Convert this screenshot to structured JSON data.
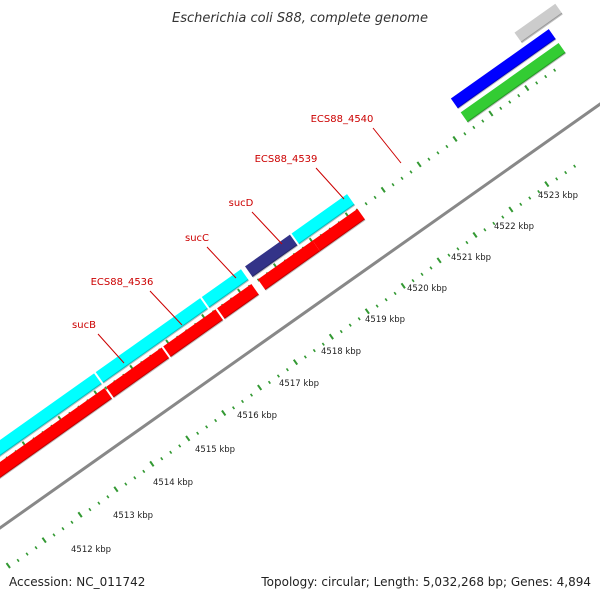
{
  "title": "Escherichia coli S88, complete genome",
  "footer": {
    "accession": "Accession: NC_011742",
    "topology": "Topology: circular; Length: 5,032,268 bp; Genes: 4,894"
  },
  "gene_labels": [
    "sucB",
    "ECS88_4536",
    "sucC",
    "sucD",
    "ECS88_4539",
    "ECS88_4540"
  ],
  "kbp_labels": [
    "4512 kbp",
    "4513 kbp",
    "4514 kbp",
    "4515 kbp",
    "4516 kbp",
    "4517 kbp",
    "4518 kbp",
    "4519 kbp",
    "4520 kbp",
    "4521 kbp",
    "4522 kbp",
    "4523 kbp"
  ],
  "colors": {
    "cyan_track": "#00ffff",
    "red_track": "#ff0000",
    "navy_feature": "#333388",
    "blue_feature": "#0000ff",
    "green_feature": "#33cc33",
    "gray_feature": "#cccccc",
    "backbone": "#999999",
    "ticks": "#339933",
    "label_red": "#cc0000"
  }
}
